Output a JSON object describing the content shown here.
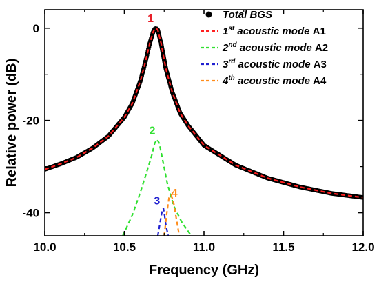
{
  "chart_data": {
    "type": "line",
    "xlabel": "Frequency (GHz)",
    "ylabel": "Relative power (dB)",
    "xlim": [
      10.0,
      12.0
    ],
    "ylim": [
      -45,
      4
    ],
    "xticks": [
      10.0,
      10.5,
      11.0,
      11.5,
      12.0
    ],
    "xtick_labels": [
      "10.0",
      "10.5",
      "11.0",
      "11.5",
      "12.0"
    ],
    "yticks": [
      0,
      -20,
      -40
    ],
    "ytick_labels": [
      "0",
      "-20",
      "-40"
    ],
    "grid": false,
    "legend_position": "top-right",
    "series": [
      {
        "name": "Total BGS",
        "style": "dots",
        "color": "#000000",
        "x": [
          10.0,
          10.1,
          10.2,
          10.3,
          10.4,
          10.5,
          10.55,
          10.6,
          10.63,
          10.66,
          10.68,
          10.69,
          10.7,
          10.71,
          10.73,
          10.76,
          10.8,
          10.85,
          10.9,
          11.0,
          11.2,
          11.4,
          11.6,
          11.8,
          12.0
        ],
        "y": [
          -30.6,
          -29.4,
          -28.0,
          -26.0,
          -23.4,
          -19.3,
          -16.3,
          -11.5,
          -7.6,
          -3.2,
          -0.9,
          -0.2,
          0.0,
          -0.4,
          -3.2,
          -8.7,
          -13.8,
          -18.4,
          -21.1,
          -25.4,
          -29.7,
          -32.5,
          -34.4,
          -35.8,
          -36.7
        ]
      },
      {
        "name": "acoustic mode A1",
        "name_prefix": "1",
        "name_sup": "st",
        "name_text": " acoustic mode ",
        "name_tail": "A1",
        "style": "dashed",
        "color": "#ff2020",
        "x": [
          10.0,
          10.1,
          10.2,
          10.3,
          10.4,
          10.5,
          10.55,
          10.6,
          10.63,
          10.66,
          10.68,
          10.69,
          10.7,
          10.71,
          10.73,
          10.76,
          10.8,
          10.85,
          10.9,
          11.0,
          11.2,
          11.4,
          11.6,
          11.8,
          12.0
        ],
        "y": [
          -30.6,
          -29.4,
          -28.0,
          -26.0,
          -23.4,
          -19.3,
          -16.3,
          -11.5,
          -7.6,
          -3.2,
          -0.9,
          -0.2,
          0.0,
          -0.4,
          -3.2,
          -8.7,
          -13.8,
          -18.4,
          -21.1,
          -25.4,
          -29.7,
          -32.5,
          -34.4,
          -35.8,
          -36.7
        ]
      },
      {
        "name": "acoustic mode A2",
        "name_prefix": "2",
        "name_sup": "nd",
        "name_text": " acoustic mode ",
        "name_tail": "A2",
        "style": "dashed",
        "color": "#30e030",
        "x": [
          10.49,
          10.55,
          10.6,
          10.64,
          10.67,
          10.69,
          10.705,
          10.72,
          10.74,
          10.77,
          10.81,
          10.86,
          10.92
        ],
        "y": [
          -45,
          -40.5,
          -35.6,
          -31.2,
          -27.8,
          -25.0,
          -24.1,
          -25.0,
          -28.5,
          -33.7,
          -38.5,
          -42.0,
          -45
        ]
      },
      {
        "name": "acoustic mode A3",
        "name_prefix": "3",
        "name_sup": "rd",
        "name_text": " acoustic mode ",
        "name_tail": "A3",
        "style": "dashed",
        "color": "#2020d0",
        "x": [
          10.71,
          10.725,
          10.735,
          10.745,
          10.752,
          10.76,
          10.775
        ],
        "y": [
          -45,
          -42.0,
          -40.0,
          -39.0,
          -40.5,
          -42.5,
          -45
        ]
      },
      {
        "name": "acoustic mode A4",
        "name_prefix": "4",
        "name_sup": "th",
        "name_text": " acoustic mode ",
        "name_tail": "A4",
        "style": "dashed",
        "color": "#ff8c1a",
        "x": [
          10.75,
          10.765,
          10.78,
          10.795,
          10.81,
          10.825,
          10.845
        ],
        "y": [
          -45,
          -40.5,
          -36.8,
          -36.2,
          -38.0,
          -41.0,
          -45
        ]
      }
    ],
    "annotations": [
      {
        "text": "1",
        "x": 10.665,
        "y": 1.3,
        "color": "#e8202a"
      },
      {
        "text": "2",
        "x": 10.675,
        "y": -23.0,
        "color": "#30e030"
      },
      {
        "text": "3",
        "x": 10.705,
        "y": -38.2,
        "color": "#2020d0"
      },
      {
        "text": "4",
        "x": 10.815,
        "y": -36.5,
        "color": "#ff8c1a"
      }
    ]
  }
}
